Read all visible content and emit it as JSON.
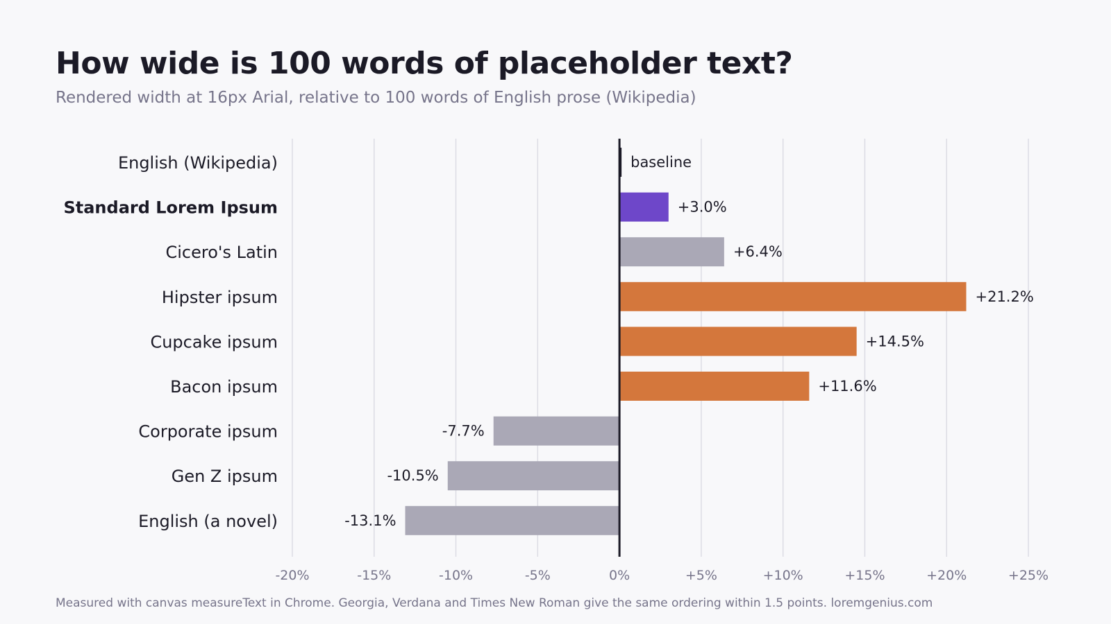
{
  "title": "How wide is 100 words of placeholder text?",
  "subtitle": "Rendered width at 16px Arial, relative to 100 words of English prose (Wikipedia)",
  "footnote": "Measured with canvas measureText in Chrome. Georgia, Verdana and Times New Roman give the same ordering within 1.5 points. loremgenius.com",
  "colors": {
    "highlight": "#6e47c9",
    "above": "#d4773c",
    "neutral": "#aaa8b6",
    "baseline": "#1b1a26",
    "grid": "#dcdce4",
    "tick_text": "#76748a",
    "label_text": "#1b1a26"
  },
  "chart_data": {
    "type": "bar",
    "orientation": "horizontal",
    "categories": [
      "English (Wikipedia)",
      "Standard Lorem Ipsum",
      "Cicero's Latin",
      "Hipster ipsum",
      "Cupcake ipsum",
      "Bacon ipsum",
      "Corporate ipsum",
      "Gen Z ipsum",
      "English (a novel)"
    ],
    "values": [
      0,
      3.0,
      6.4,
      21.2,
      14.5,
      11.6,
      -7.7,
      -10.5,
      -13.1
    ],
    "value_labels": [
      "baseline",
      "+3.0%",
      "+6.4%",
      "+21.2%",
      "+14.5%",
      "+11.6%",
      "-7.7%",
      "-10.5%",
      "-13.1%"
    ],
    "bar_color_keys": [
      "baseline",
      "highlight",
      "neutral",
      "above",
      "above",
      "above",
      "neutral",
      "neutral",
      "neutral"
    ],
    "bold_categories": [
      "Standard Lorem Ipsum"
    ],
    "xlim": [
      -20,
      25
    ],
    "xticks": [
      -20,
      -15,
      -10,
      -5,
      0,
      5,
      10,
      15,
      20,
      25
    ],
    "xtick_labels": [
      "-20%",
      "-15%",
      "-10%",
      "-5%",
      "0%",
      "+5%",
      "+10%",
      "+15%",
      "+20%",
      "+25%"
    ],
    "xlabel": "",
    "ylabel": "",
    "grid": true,
    "legend": "none"
  }
}
